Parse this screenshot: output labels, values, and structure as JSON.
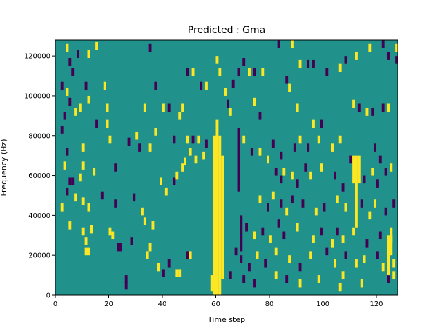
{
  "chart_data": {
    "type": "heatmap",
    "title": "Predicted : Gma",
    "xlabel": "Time step",
    "ylabel": "Frequency (Hz)",
    "xlim": [
      0,
      128
    ],
    "ylim": [
      0,
      128000
    ],
    "x_ticks": [
      0,
      20,
      40,
      60,
      80,
      100,
      120
    ],
    "y_ticks": [
      0,
      20000,
      40000,
      60000,
      80000,
      100000,
      120000
    ],
    "colormap": "viridis",
    "background_color": "#21918c",
    "low_color": "#440154",
    "high_color": "#fde725",
    "grid": false,
    "cells": [
      {
        "t": 4,
        "f": 122000,
        "v": "high"
      },
      {
        "t": 5,
        "f": 115000,
        "v": "low"
      },
      {
        "t": 6,
        "f": 110000,
        "v": "low"
      },
      {
        "t": 8,
        "f": 119000,
        "v": "low"
      },
      {
        "t": 12,
        "f": 119000,
        "v": "high"
      },
      {
        "t": 15,
        "f": 123000,
        "v": "high"
      },
      {
        "t": 2,
        "f": 103000,
        "v": "low"
      },
      {
        "t": 4,
        "f": 100000,
        "v": "high"
      },
      {
        "t": 5,
        "f": 95000,
        "v": "low"
      },
      {
        "t": 7,
        "f": 90000,
        "v": "high"
      },
      {
        "t": 11,
        "f": 103000,
        "v": "low"
      },
      {
        "t": 18,
        "f": 103000,
        "v": "high"
      },
      {
        "t": 3,
        "f": 88000,
        "v": "low"
      },
      {
        "t": 9,
        "f": 92000,
        "v": "high"
      },
      {
        "t": 12,
        "f": 96000,
        "v": "high"
      },
      {
        "t": 19,
        "f": 92000,
        "v": "high"
      },
      {
        "t": 2,
        "f": 81000,
        "v": "low"
      },
      {
        "t": 15,
        "f": 84000,
        "v": "low"
      },
      {
        "t": 19,
        "f": 84000,
        "v": "high"
      },
      {
        "t": 4,
        "f": 70000,
        "v": "low"
      },
      {
        "t": 10,
        "f": 72000,
        "v": "high"
      },
      {
        "t": 20,
        "f": 76000,
        "v": "high"
      },
      {
        "t": 3,
        "f": 63000,
        "v": "high"
      },
      {
        "t": 5,
        "f": 55000,
        "v": "low"
      },
      {
        "t": 6,
        "f": 55000,
        "v": "low"
      },
      {
        "t": 9,
        "f": 57000,
        "v": "high"
      },
      {
        "t": 10,
        "f": 63000,
        "v": "high"
      },
      {
        "t": 14,
        "f": 60000,
        "v": "high"
      },
      {
        "t": 22,
        "f": 62000,
        "v": "low"
      },
      {
        "t": 2,
        "f": 42000,
        "v": "high"
      },
      {
        "t": 4,
        "f": 50000,
        "v": "low"
      },
      {
        "t": 7,
        "f": 47000,
        "v": "high"
      },
      {
        "t": 10,
        "f": 45000,
        "v": "high"
      },
      {
        "t": 12,
        "f": 42000,
        "v": "high"
      },
      {
        "t": 17,
        "f": 48000,
        "v": "low"
      },
      {
        "t": 22,
        "f": 44000,
        "v": "low"
      },
      {
        "t": 5,
        "f": 33000,
        "v": "high"
      },
      {
        "t": 10,
        "f": 30000,
        "v": "high"
      },
      {
        "t": 11,
        "f": 25000,
        "v": "high"
      },
      {
        "t": 13,
        "f": 31000,
        "v": "high"
      },
      {
        "t": 20,
        "f": 30000,
        "v": "high"
      },
      {
        "t": 21,
        "f": 28000,
        "v": "high"
      },
      {
        "t": 23,
        "f": 22000,
        "v": "low"
      },
      {
        "t": 24,
        "f": 22000,
        "v": "low"
      },
      {
        "t": 28,
        "f": 25000,
        "v": "low"
      },
      {
        "t": 11,
        "f": 20000,
        "v": "high"
      },
      {
        "t": 12,
        "f": 20000,
        "v": "high"
      },
      {
        "t": 26,
        "f": 3000,
        "v": "low"
      },
      {
        "t": 26,
        "f": 6000,
        "v": "low"
      },
      {
        "t": 34,
        "f": 18000,
        "v": "high"
      },
      {
        "t": 35,
        "f": 22000,
        "v": "high"
      },
      {
        "t": 38,
        "f": 12000,
        "v": "high"
      },
      {
        "t": 40,
        "f": 9000,
        "v": "low"
      },
      {
        "t": 42,
        "f": 14000,
        "v": "low"
      },
      {
        "t": 45,
        "f": 9000,
        "v": "high"
      },
      {
        "t": 46,
        "f": 9000,
        "v": "high"
      },
      {
        "t": 49,
        "f": 18000,
        "v": "low"
      },
      {
        "t": 50,
        "f": 18000,
        "v": "high"
      },
      {
        "t": 58,
        "f": 2000,
        "v": "high"
      },
      {
        "t": 58,
        "f": 6000,
        "v": "high"
      },
      {
        "t": 29,
        "f": 47000,
        "v": "low"
      },
      {
        "t": 32,
        "f": 40000,
        "v": "high"
      },
      {
        "t": 33,
        "f": 35000,
        "v": "high"
      },
      {
        "t": 36,
        "f": 33000,
        "v": "high"
      },
      {
        "t": 39,
        "f": 55000,
        "v": "high"
      },
      {
        "t": 41,
        "f": 50000,
        "v": "high"
      },
      {
        "t": 44,
        "f": 55000,
        "v": "low"
      },
      {
        "t": 45,
        "f": 58000,
        "v": "high"
      },
      {
        "t": 47,
        "f": 62000,
        "v": "high"
      },
      {
        "t": 48,
        "f": 65000,
        "v": "high"
      },
      {
        "t": 50,
        "f": 70000,
        "v": "high"
      },
      {
        "t": 52,
        "f": 66000,
        "v": "high"
      },
      {
        "t": 27,
        "f": 75000,
        "v": "low"
      },
      {
        "t": 30,
        "f": 78000,
        "v": "high"
      },
      {
        "t": 31,
        "f": 72000,
        "v": "low"
      },
      {
        "t": 35,
        "f": 72000,
        "v": "high"
      },
      {
        "t": 37,
        "f": 80000,
        "v": "high"
      },
      {
        "t": 44,
        "f": 76000,
        "v": "low"
      },
      {
        "t": 46,
        "f": 88000,
        "v": "high"
      },
      {
        "t": 49,
        "f": 76000,
        "v": "high"
      },
      {
        "t": 51,
        "f": 76000,
        "v": "low"
      },
      {
        "t": 53,
        "f": 76000,
        "v": "high"
      },
      {
        "t": 55,
        "f": 68000,
        "v": "high"
      },
      {
        "t": 56,
        "f": 74000,
        "v": "low"
      },
      {
        "t": 33,
        "f": 92000,
        "v": "high"
      },
      {
        "t": 37,
        "f": 103000,
        "v": "low"
      },
      {
        "t": 40,
        "f": 92000,
        "v": "high"
      },
      {
        "t": 42,
        "f": 92000,
        "v": "low"
      },
      {
        "t": 47,
        "f": 92000,
        "v": "high"
      },
      {
        "t": 49,
        "f": 110000,
        "v": "low"
      },
      {
        "t": 51,
        "f": 110000,
        "v": "high"
      },
      {
        "t": 54,
        "f": 103000,
        "v": "low"
      },
      {
        "t": 56,
        "f": 103000,
        "v": "high"
      },
      {
        "t": 35,
        "f": 122000,
        "v": "low"
      },
      {
        "t": 60,
        "f": 116000,
        "v": "high"
      },
      {
        "t": 61,
        "f": 110000,
        "v": "high"
      },
      {
        "t": 63,
        "f": 100000,
        "v": "high"
      },
      {
        "t": 64,
        "f": 94000,
        "v": "low"
      },
      {
        "t": 65,
        "f": 90000,
        "v": "high"
      },
      {
        "t": 66,
        "f": 104000,
        "v": "low"
      },
      {
        "t": 68,
        "f": 110000,
        "v": "low"
      },
      {
        "t": 70,
        "f": 115000,
        "v": "low"
      },
      {
        "t": 72,
        "f": 110000,
        "v": "high"
      },
      {
        "t": 74,
        "f": 110000,
        "v": "low"
      },
      {
        "t": 77,
        "f": 110000,
        "v": "high"
      },
      {
        "t": 83,
        "f": 124000,
        "v": "low"
      },
      {
        "t": 88,
        "f": 124000,
        "v": "high"
      },
      {
        "t": 86,
        "f": 106000,
        "v": "low"
      },
      {
        "t": 87,
        "f": 102000,
        "v": "high"
      },
      {
        "t": 91,
        "f": 114000,
        "v": "high"
      },
      {
        "t": 94,
        "f": 114000,
        "v": "low"
      },
      {
        "t": 96,
        "f": 114000,
        "v": "low"
      },
      {
        "t": 101,
        "f": 110000,
        "v": "low"
      },
      {
        "t": 106,
        "f": 112000,
        "v": "high"
      },
      {
        "t": 108,
        "f": 116000,
        "v": "low"
      },
      {
        "t": 112,
        "f": 118000,
        "v": "high"
      },
      {
        "t": 117,
        "f": 122000,
        "v": "high"
      },
      {
        "t": 122,
        "f": 124000,
        "v": "low"
      },
      {
        "t": 124,
        "f": 118000,
        "v": "low"
      },
      {
        "t": 127,
        "f": 116000,
        "v": "low"
      },
      {
        "t": 127,
        "f": 122000,
        "v": "high"
      },
      {
        "t": 74,
        "f": 95000,
        "v": "high"
      },
      {
        "t": 76,
        "f": 88000,
        "v": "low"
      },
      {
        "t": 90,
        "f": 92000,
        "v": "high"
      },
      {
        "t": 96,
        "f": 84000,
        "v": "high"
      },
      {
        "t": 99,
        "f": 84000,
        "v": "low"
      },
      {
        "t": 111,
        "f": 94000,
        "v": "high"
      },
      {
        "t": 113,
        "f": 92000,
        "v": "low"
      },
      {
        "t": 116,
        "f": 90000,
        "v": "high"
      },
      {
        "t": 118,
        "f": 90000,
        "v": "low"
      },
      {
        "t": 122,
        "f": 92000,
        "v": "low"
      },
      {
        "t": 124,
        "f": 92000,
        "v": "high"
      },
      {
        "t": 70,
        "f": 76000,
        "v": "high"
      },
      {
        "t": 73,
        "f": 70000,
        "v": "low"
      },
      {
        "t": 76,
        "f": 70000,
        "v": "high"
      },
      {
        "t": 79,
        "f": 66000,
        "v": "high"
      },
      {
        "t": 81,
        "f": 74000,
        "v": "low"
      },
      {
        "t": 84,
        "f": 68000,
        "v": "low"
      },
      {
        "t": 89,
        "f": 72000,
        "v": "low"
      },
      {
        "t": 91,
        "f": 76000,
        "v": "high"
      },
      {
        "t": 94,
        "f": 72000,
        "v": "low"
      },
      {
        "t": 98,
        "f": 76000,
        "v": "high"
      },
      {
        "t": 103,
        "f": 72000,
        "v": "high"
      },
      {
        "t": 106,
        "f": 76000,
        "v": "high"
      },
      {
        "t": 110,
        "f": 66000,
        "v": "low"
      },
      {
        "t": 119,
        "f": 72000,
        "v": "low"
      },
      {
        "t": 121,
        "f": 66000,
        "v": "low"
      },
      {
        "t": 123,
        "f": 60000,
        "v": "low"
      },
      {
        "t": 125,
        "f": 62000,
        "v": "high"
      },
      {
        "t": 82,
        "f": 60000,
        "v": "low"
      },
      {
        "t": 84,
        "f": 56000,
        "v": "low"
      },
      {
        "t": 85,
        "f": 60000,
        "v": "high"
      },
      {
        "t": 88,
        "f": 58000,
        "v": "high"
      },
      {
        "t": 90,
        "f": 54000,
        "v": "low"
      },
      {
        "t": 93,
        "f": 62000,
        "v": "low"
      },
      {
        "t": 95,
        "f": 58000,
        "v": "high"
      },
      {
        "t": 99,
        "f": 62000,
        "v": "high"
      },
      {
        "t": 104,
        "f": 58000,
        "v": "low"
      },
      {
        "t": 107,
        "f": 52000,
        "v": "low"
      },
      {
        "t": 115,
        "f": 56000,
        "v": "low"
      },
      {
        "t": 118,
        "f": 60000,
        "v": "high"
      },
      {
        "t": 120,
        "f": 54000,
        "v": "low"
      },
      {
        "t": 76,
        "f": 46000,
        "v": "high"
      },
      {
        "t": 79,
        "f": 42000,
        "v": "low"
      },
      {
        "t": 81,
        "f": 48000,
        "v": "high"
      },
      {
        "t": 84,
        "f": 44000,
        "v": "low"
      },
      {
        "t": 86,
        "f": 40000,
        "v": "high"
      },
      {
        "t": 88,
        "f": 46000,
        "v": "low"
      },
      {
        "t": 92,
        "f": 44000,
        "v": "low"
      },
      {
        "t": 97,
        "f": 40000,
        "v": "high"
      },
      {
        "t": 100,
        "f": 42000,
        "v": "low"
      },
      {
        "t": 105,
        "f": 46000,
        "v": "high"
      },
      {
        "t": 108,
        "f": 42000,
        "v": "high"
      },
      {
        "t": 114,
        "f": 44000,
        "v": "low"
      },
      {
        "t": 117,
        "f": 38000,
        "v": "high"
      },
      {
        "t": 119,
        "f": 44000,
        "v": "high"
      },
      {
        "t": 123,
        "f": 40000,
        "v": "low"
      },
      {
        "t": 126,
        "f": 44000,
        "v": "low"
      },
      {
        "t": 71,
        "f": 32000,
        "v": "low"
      },
      {
        "t": 74,
        "f": 28000,
        "v": "high"
      },
      {
        "t": 77,
        "f": 30000,
        "v": "low"
      },
      {
        "t": 80,
        "f": 26000,
        "v": "high"
      },
      {
        "t": 83,
        "f": 34000,
        "v": "low"
      },
      {
        "t": 85,
        "f": 28000,
        "v": "low"
      },
      {
        "t": 90,
        "f": 32000,
        "v": "high"
      },
      {
        "t": 96,
        "f": 26000,
        "v": "high"
      },
      {
        "t": 99,
        "f": 30000,
        "v": "low"
      },
      {
        "t": 103,
        "f": 24000,
        "v": "high"
      },
      {
        "t": 105,
        "f": 30000,
        "v": "low"
      },
      {
        "t": 107,
        "f": 26000,
        "v": "high"
      },
      {
        "t": 111,
        "f": 30000,
        "v": "high"
      },
      {
        "t": 116,
        "f": 24000,
        "v": "low"
      },
      {
        "t": 121,
        "f": 28000,
        "v": "low"
      },
      {
        "t": 125,
        "f": 26000,
        "v": "high"
      },
      {
        "t": 67,
        "f": 20000,
        "v": "low"
      },
      {
        "t": 69,
        "f": 16000,
        "v": "low"
      },
      {
        "t": 72,
        "f": 12000,
        "v": "low"
      },
      {
        "t": 75,
        "f": 18000,
        "v": "high"
      },
      {
        "t": 78,
        "f": 14000,
        "v": "low"
      },
      {
        "t": 82,
        "f": 20000,
        "v": "high"
      },
      {
        "t": 87,
        "f": 16000,
        "v": "high"
      },
      {
        "t": 91,
        "f": 12000,
        "v": "low"
      },
      {
        "t": 95,
        "f": 18000,
        "v": "high"
      },
      {
        "t": 101,
        "f": 20000,
        "v": "low"
      },
      {
        "t": 104,
        "f": 14000,
        "v": "high"
      },
      {
        "t": 108,
        "f": 18000,
        "v": "low"
      },
      {
        "t": 112,
        "f": 14000,
        "v": "high"
      },
      {
        "t": 115,
        "f": 16000,
        "v": "high"
      },
      {
        "t": 120,
        "f": 18000,
        "v": "low"
      },
      {
        "t": 122,
        "f": 12000,
        "v": "high"
      },
      {
        "t": 126,
        "f": 14000,
        "v": "high"
      },
      {
        "t": 65,
        "f": 8000,
        "v": "low"
      },
      {
        "t": 70,
        "f": 6000,
        "v": "low"
      },
      {
        "t": 74,
        "f": 4000,
        "v": "low"
      },
      {
        "t": 82,
        "f": 8000,
        "v": "high"
      },
      {
        "t": 86,
        "f": 6000,
        "v": "low"
      },
      {
        "t": 91,
        "f": 4000,
        "v": "high"
      },
      {
        "t": 98,
        "f": 6000,
        "v": "high"
      },
      {
        "t": 106,
        "f": 2000,
        "v": "high"
      },
      {
        "t": 107,
        "f": 8000,
        "v": "high"
      },
      {
        "t": 114,
        "f": 4000,
        "v": "high"
      },
      {
        "t": 124,
        "f": 6000,
        "v": "low"
      },
      {
        "t": 126,
        "f": 8000,
        "v": "high"
      }
    ],
    "bands": [
      {
        "t": 59,
        "f0": 0,
        "f1": 80000,
        "v": "high"
      },
      {
        "t": 60,
        "f0": 0,
        "f1": 88000,
        "v": "high"
      },
      {
        "t": 61,
        "f0": 0,
        "f1": 80000,
        "v": "high"
      },
      {
        "t": 62,
        "f0": 8000,
        "f1": 70000,
        "v": "high"
      },
      {
        "t": 68,
        "f0": 52000,
        "f1": 84000,
        "v": "low"
      },
      {
        "t": 69,
        "f0": 22000,
        "f1": 40000,
        "v": "low"
      },
      {
        "t": 111,
        "f0": 56000,
        "f1": 70000,
        "v": "high"
      },
      {
        "t": 112,
        "f0": 34000,
        "f1": 70000,
        "v": "high"
      },
      {
        "t": 113,
        "f0": 56000,
        "f1": 70000,
        "v": "high"
      },
      {
        "t": 124,
        "f0": 10000,
        "f1": 30000,
        "v": "high"
      },
      {
        "t": 125,
        "f0": 20000,
        "f1": 34000,
        "v": "high"
      }
    ]
  }
}
